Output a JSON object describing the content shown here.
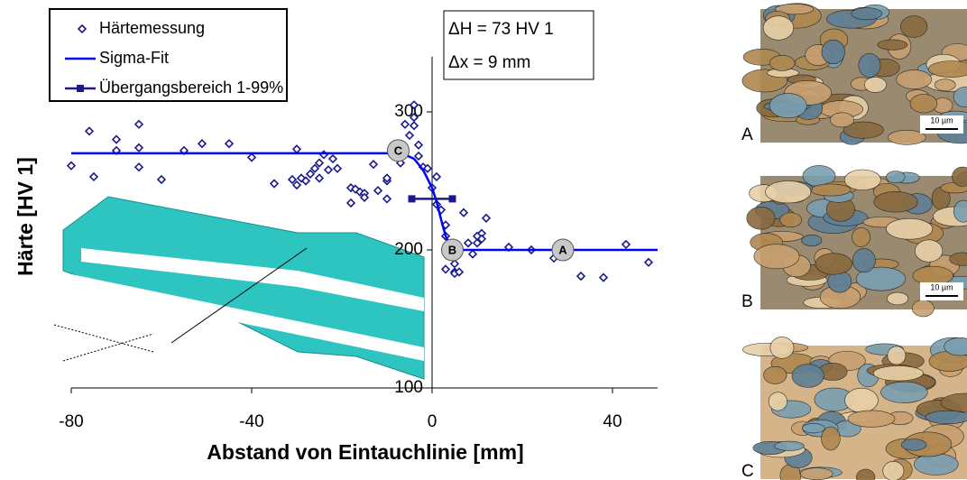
{
  "chart_data": {
    "type": "scatter",
    "xlabel": "Abstand von Eintauchlinie [mm]",
    "ylabel": "Härte [HV 1]",
    "xlim": [
      -80,
      50
    ],
    "ylim": [
      100,
      340
    ],
    "xticks": [
      -80,
      -40,
      0,
      40
    ],
    "yticks": [
      100,
      200,
      300
    ],
    "series": [
      {
        "name": "Härtemessung",
        "color": "#1a1a8c",
        "marker": "diamond",
        "x": [
          -80,
          -76,
          -75,
          -70,
          -70,
          -65,
          -65,
          -65,
          -60,
          -55,
          -51,
          -45,
          -40,
          -35,
          -31,
          -30,
          -30,
          -29,
          -28,
          -27,
          -26,
          -25,
          -25,
          -24,
          -23,
          -22,
          -21,
          -18,
          -18,
          -17,
          -16,
          -15,
          -15,
          -13,
          -12,
          -10,
          -10,
          -10,
          -7,
          -7,
          -5,
          -6,
          -4,
          -4,
          -4,
          -3,
          -3,
          -2,
          -1,
          0,
          1,
          1,
          2,
          3,
          3,
          3,
          5,
          5,
          5,
          6,
          7,
          8,
          9,
          10,
          10,
          11,
          11,
          12,
          17,
          22,
          27,
          33,
          38,
          43,
          48
        ],
        "values": [
          261,
          286,
          253,
          280,
          272,
          291,
          274,
          260,
          251,
          272,
          277,
          277,
          267,
          248,
          251,
          247,
          273,
          252,
          250,
          255,
          259,
          252,
          263,
          269,
          258,
          266,
          259,
          245,
          234,
          244,
          242,
          241,
          238,
          262,
          243,
          250,
          237,
          252,
          263,
          269,
          283,
          291,
          305,
          290,
          296,
          268,
          276,
          260,
          259,
          245,
          253,
          233,
          229,
          210,
          218,
          186,
          190,
          184,
          183,
          184,
          227,
          205,
          197,
          205,
          210,
          212,
          208,
          223,
          202,
          200,
          194,
          181,
          180,
          204,
          191
        ]
      },
      {
        "name": "Sigma-Fit",
        "color": "#0000ff",
        "marker": "line",
        "x": [
          -80,
          -10,
          -6,
          -4,
          -2,
          0,
          1,
          2,
          3,
          4,
          6,
          10,
          50
        ],
        "values": [
          270,
          270,
          269,
          266,
          258,
          245,
          235,
          222,
          210,
          203,
          200,
          200,
          200
        ]
      },
      {
        "name": "Übergangsbereich 1-99%",
        "color": "#1a1a8c",
        "marker": "square-line",
        "x": [
          -4.5,
          4.5
        ],
        "values": [
          237,
          237
        ]
      }
    ],
    "annotations": [
      {
        "text": "ΔH = 73 HV 1"
      },
      {
        "text": "Δx = 9 mm"
      },
      {
        "text": "C",
        "x": -7.5,
        "y": 272
      },
      {
        "text": "B",
        "x": 4.5,
        "y": 200
      },
      {
        "text": "A",
        "x": 29,
        "y": 200
      }
    ],
    "micrographs": [
      {
        "label": "A",
        "scale": "10 µm"
      },
      {
        "label": "B",
        "scale": "10 µm"
      },
      {
        "label": "C"
      }
    ],
    "legend": "upper left"
  }
}
